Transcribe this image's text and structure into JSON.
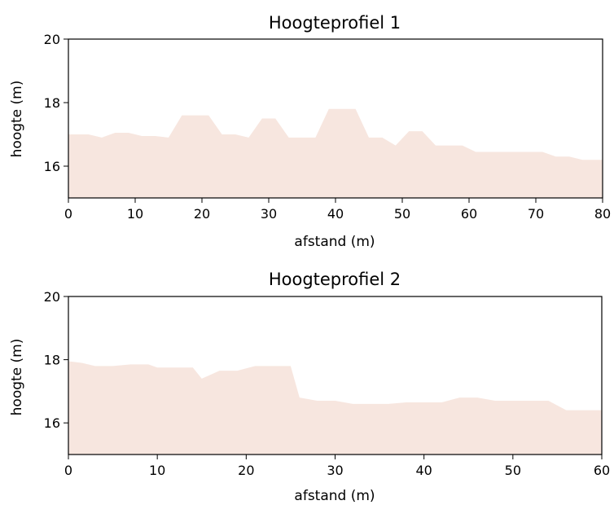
{
  "chart_data": [
    {
      "type": "area",
      "title": "Hoogteprofiel 1",
      "xlabel": "afstand (m)",
      "ylabel": "hoogte (m)",
      "xlim": [
        0,
        80
      ],
      "ylim": [
        15,
        20
      ],
      "xticks": [
        "0",
        "10",
        "20",
        "30",
        "40",
        "50",
        "60",
        "70",
        "80"
      ],
      "yticks": [
        "16",
        "18",
        "20"
      ],
      "fill_color": "#f7e6df",
      "grid": false,
      "x": [
        0,
        3,
        5,
        7,
        9,
        11,
        13,
        15,
        17,
        19,
        21,
        23,
        25,
        27,
        29,
        31,
        33,
        35,
        37,
        39,
        41,
        43,
        45,
        47,
        49,
        51,
        53,
        55,
        57,
        59,
        61,
        63,
        65,
        67,
        69,
        71,
        73,
        75,
        77,
        79,
        80
      ],
      "values": [
        17.0,
        17.0,
        16.9,
        17.05,
        17.05,
        16.95,
        16.95,
        16.9,
        17.6,
        17.6,
        17.6,
        17.0,
        17.0,
        16.9,
        17.5,
        17.5,
        16.9,
        16.9,
        16.9,
        17.8,
        17.8,
        17.8,
        16.9,
        16.9,
        16.65,
        17.1,
        17.1,
        16.65,
        16.65,
        16.65,
        16.45,
        16.45,
        16.45,
        16.45,
        16.45,
        16.45,
        16.3,
        16.3,
        16.2,
        16.2,
        16.2
      ]
    },
    {
      "type": "area",
      "title": "Hoogteprofiel 2",
      "xlabel": "afstand (m)",
      "ylabel": "hoogte (m)",
      "xlim": [
        0,
        60
      ],
      "ylim": [
        15,
        20
      ],
      "xticks": [
        "0",
        "10",
        "20",
        "30",
        "40",
        "50",
        "60"
      ],
      "yticks": [
        "16",
        "18",
        "20"
      ],
      "fill_color": "#f7e6df",
      "grid": false,
      "x": [
        0,
        1.5,
        3,
        5,
        7,
        9,
        10,
        12,
        14,
        15,
        17,
        19,
        21,
        23,
        25,
        26,
        28,
        30,
        32,
        34,
        36,
        38,
        40,
        42,
        44,
        46,
        48,
        50,
        52,
        54,
        56,
        58,
        60
      ],
      "values": [
        17.95,
        17.9,
        17.8,
        17.8,
        17.85,
        17.85,
        17.75,
        17.75,
        17.75,
        17.4,
        17.65,
        17.65,
        17.8,
        17.8,
        17.8,
        16.8,
        16.7,
        16.7,
        16.6,
        16.6,
        16.6,
        16.65,
        16.65,
        16.65,
        16.8,
        16.8,
        16.7,
        16.7,
        16.7,
        16.7,
        16.4,
        16.4,
        16.4
      ]
    }
  ]
}
